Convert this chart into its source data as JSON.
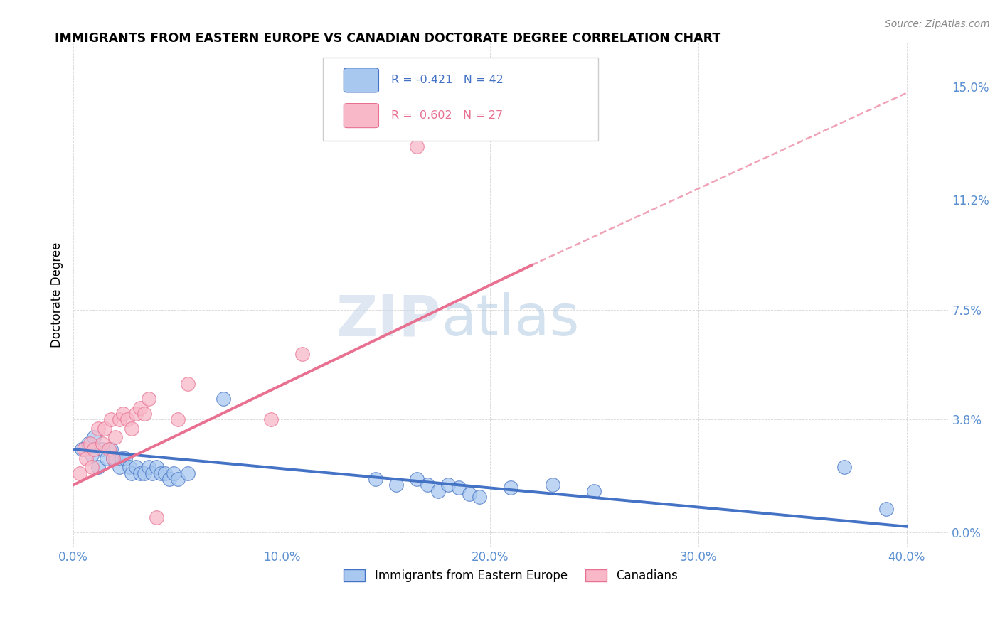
{
  "title": "IMMIGRANTS FROM EASTERN EUROPE VS CANADIAN DOCTORATE DEGREE CORRELATION CHART",
  "source_text": "Source: ZipAtlas.com",
  "ylabel": "Doctorate Degree",
  "xlabel_ticks": [
    "0.0%",
    "10.0%",
    "20.0%",
    "30.0%",
    "40.0%"
  ],
  "xlabel_tick_vals": [
    0.0,
    0.1,
    0.2,
    0.3,
    0.4
  ],
  "ytick_labels": [
    "0.0%",
    "3.8%",
    "7.5%",
    "11.2%",
    "15.0%"
  ],
  "ytick_vals": [
    0.0,
    0.038,
    0.075,
    0.112,
    0.15
  ],
  "xlim": [
    0.0,
    0.42
  ],
  "ylim": [
    -0.005,
    0.165
  ],
  "legend_blue_label": "Immigrants from Eastern Europe",
  "legend_pink_label": "Canadians",
  "R_blue": -0.421,
  "N_blue": 42,
  "R_pink": 0.602,
  "N_pink": 27,
  "blue_color": "#A8C8F0",
  "pink_color": "#F8B8C8",
  "blue_line_color": "#4472C4",
  "pink_line_color": "#E87090",
  "watermark_color": "#D0E0F0",
  "blue_line": [
    [
      0.0,
      0.028
    ],
    [
      0.4,
      0.002
    ]
  ],
  "pink_line_solid": [
    [
      0.0,
      0.016
    ],
    [
      0.22,
      0.09
    ]
  ],
  "pink_line_dash": [
    [
      0.22,
      0.09
    ],
    [
      0.4,
      0.148
    ]
  ],
  "blue_points": [
    [
      0.004,
      0.028
    ],
    [
      0.007,
      0.03
    ],
    [
      0.009,
      0.026
    ],
    [
      0.01,
      0.032
    ],
    [
      0.012,
      0.022
    ],
    [
      0.014,
      0.028
    ],
    [
      0.016,
      0.025
    ],
    [
      0.018,
      0.028
    ],
    [
      0.019,
      0.025
    ],
    [
      0.02,
      0.025
    ],
    [
      0.022,
      0.022
    ],
    [
      0.023,
      0.025
    ],
    [
      0.025,
      0.025
    ],
    [
      0.027,
      0.022
    ],
    [
      0.028,
      0.02
    ],
    [
      0.03,
      0.022
    ],
    [
      0.032,
      0.02
    ],
    [
      0.034,
      0.02
    ],
    [
      0.036,
      0.022
    ],
    [
      0.038,
      0.02
    ],
    [
      0.04,
      0.022
    ],
    [
      0.042,
      0.02
    ],
    [
      0.044,
      0.02
    ],
    [
      0.046,
      0.018
    ],
    [
      0.048,
      0.02
    ],
    [
      0.05,
      0.018
    ],
    [
      0.055,
      0.02
    ],
    [
      0.072,
      0.045
    ],
    [
      0.145,
      0.018
    ],
    [
      0.155,
      0.016
    ],
    [
      0.165,
      0.018
    ],
    [
      0.17,
      0.016
    ],
    [
      0.175,
      0.014
    ],
    [
      0.18,
      0.016
    ],
    [
      0.185,
      0.015
    ],
    [
      0.19,
      0.013
    ],
    [
      0.195,
      0.012
    ],
    [
      0.21,
      0.015
    ],
    [
      0.23,
      0.016
    ],
    [
      0.25,
      0.014
    ],
    [
      0.37,
      0.022
    ],
    [
      0.39,
      0.008
    ]
  ],
  "pink_points": [
    [
      0.003,
      0.02
    ],
    [
      0.005,
      0.028
    ],
    [
      0.006,
      0.025
    ],
    [
      0.008,
      0.03
    ],
    [
      0.009,
      0.022
    ],
    [
      0.01,
      0.028
    ],
    [
      0.012,
      0.035
    ],
    [
      0.014,
      0.03
    ],
    [
      0.015,
      0.035
    ],
    [
      0.017,
      0.028
    ],
    [
      0.018,
      0.038
    ],
    [
      0.019,
      0.025
    ],
    [
      0.02,
      0.032
    ],
    [
      0.022,
      0.038
    ],
    [
      0.024,
      0.04
    ],
    [
      0.026,
      0.038
    ],
    [
      0.028,
      0.035
    ],
    [
      0.03,
      0.04
    ],
    [
      0.032,
      0.042
    ],
    [
      0.034,
      0.04
    ],
    [
      0.036,
      0.045
    ],
    [
      0.04,
      0.005
    ],
    [
      0.05,
      0.038
    ],
    [
      0.055,
      0.05
    ],
    [
      0.095,
      0.038
    ],
    [
      0.11,
      0.06
    ],
    [
      0.165,
      0.13
    ]
  ]
}
